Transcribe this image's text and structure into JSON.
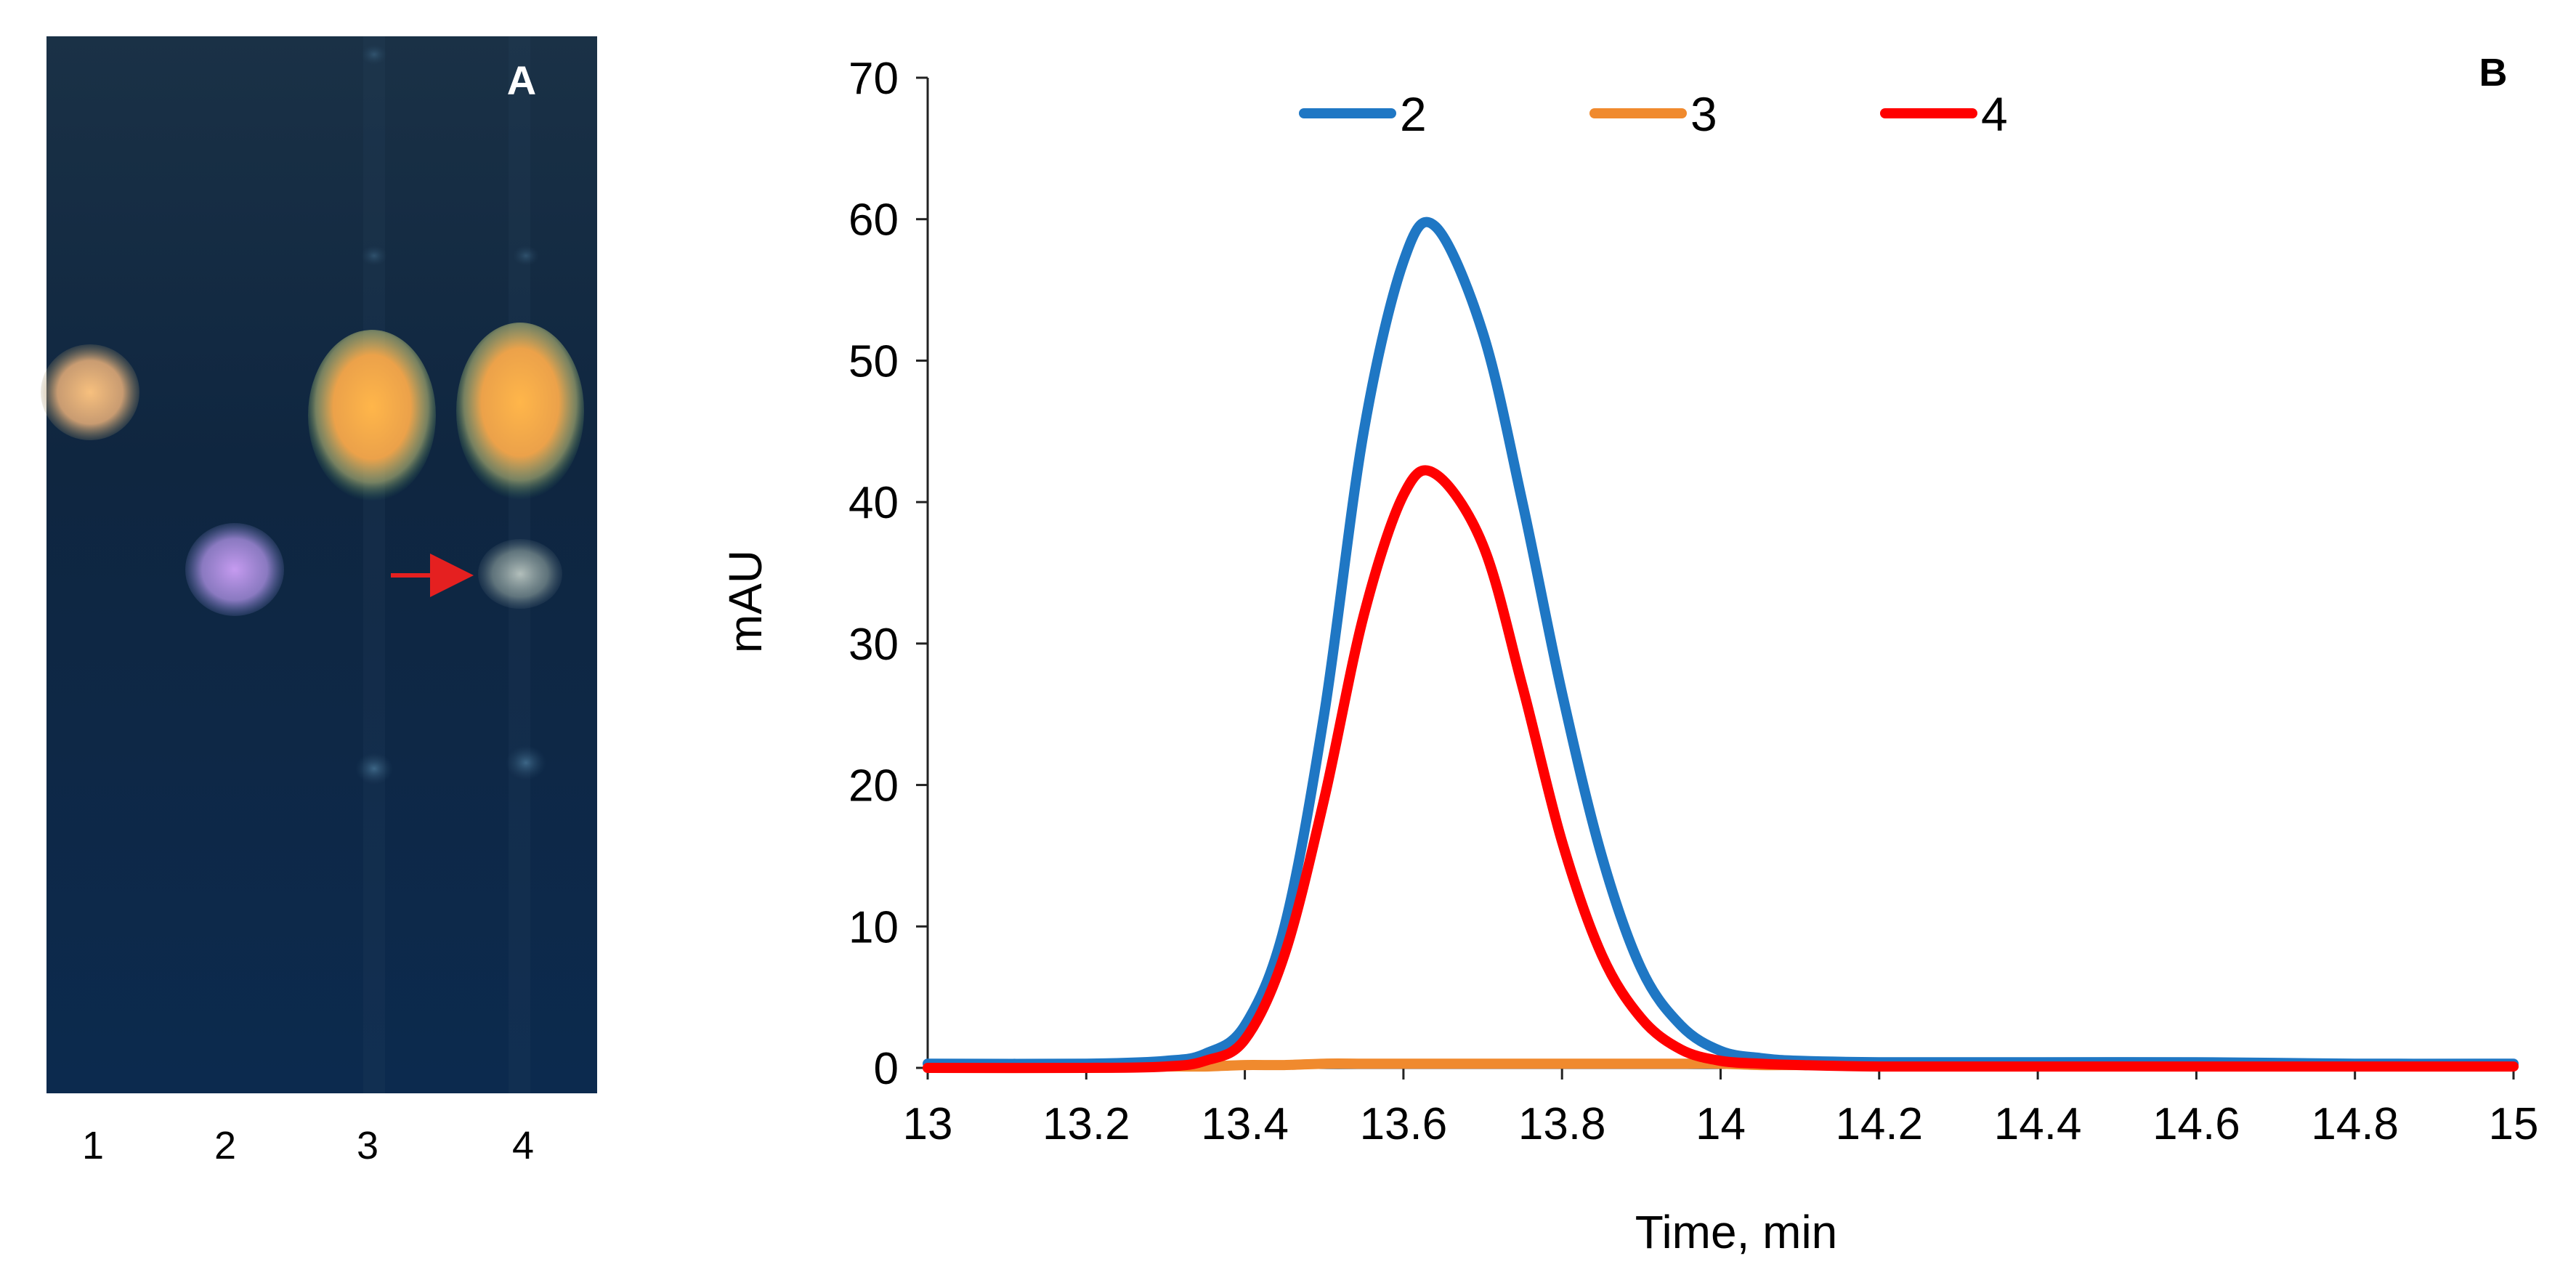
{
  "panel_a": {
    "label": "A",
    "lane_labels": [
      "1",
      "2",
      "3",
      "4"
    ],
    "spots": [
      {
        "lane": "1",
        "rf": 0.66,
        "color": "#f7c07e",
        "kind": "orange"
      },
      {
        "lane": "2",
        "rf": 0.49,
        "color": "#c69bf0",
        "kind": "violet"
      },
      {
        "lane": "3",
        "rf": 0.63,
        "color": "#ffb64a",
        "kind": "orange-large"
      },
      {
        "lane": "4",
        "rf": 0.63,
        "color": "#ffb64a",
        "kind": "orange-large"
      },
      {
        "lane": "4",
        "rf": 0.49,
        "color": "#cfd9d0",
        "kind": "faint-grey"
      }
    ],
    "arrow": {
      "target_lane": "4",
      "rf": 0.49,
      "color": "#e52020"
    },
    "background_color": "#0f2640"
  },
  "chart_data": {
    "type": "line",
    "panel_label": "B",
    "title": "",
    "xlabel": "Time, min",
    "ylabel": "mAU",
    "xlim": [
      13,
      15
    ],
    "ylim": [
      0,
      70
    ],
    "xticks": [
      "13",
      "13.2",
      "13.4",
      "13.6",
      "13.8",
      "14",
      "14.2",
      "14.4",
      "14.6",
      "14.8",
      "15"
    ],
    "yticks": [
      "0",
      "10",
      "20",
      "30",
      "40",
      "50",
      "60",
      "70"
    ],
    "legend_position": "top-center",
    "grid": false,
    "x": [
      13.0,
      13.2,
      13.3,
      13.35,
      13.4,
      13.45,
      13.5,
      13.55,
      13.6,
      13.64,
      13.7,
      13.75,
      13.8,
      13.85,
      13.9,
      13.95,
      14.0,
      14.05,
      14.1,
      14.2,
      14.4,
      14.6,
      14.8,
      15.0
    ],
    "series": [
      {
        "name": "2",
        "color": "#1f77c4",
        "values": [
          0.3,
          0.3,
          0.5,
          1.0,
          3.0,
          10.0,
          25.0,
          45.0,
          57.0,
          59.5,
          52.0,
          40.0,
          26.5,
          15.0,
          7.0,
          3.0,
          1.2,
          0.7,
          0.5,
          0.4,
          0.4,
          0.4,
          0.3,
          0.3
        ]
      },
      {
        "name": "3",
        "color": "#f08a2e",
        "values": [
          0.0,
          0.0,
          0.1,
          0.1,
          0.2,
          0.2,
          0.3,
          0.3,
          0.3,
          0.3,
          0.3,
          0.3,
          0.3,
          0.3,
          0.3,
          0.3,
          0.3,
          0.2,
          0.2,
          0.2,
          0.2,
          0.2,
          0.2,
          0.2
        ]
      },
      {
        "name": "4",
        "color": "#ff0000",
        "values": [
          0.0,
          0.0,
          0.1,
          0.5,
          2.0,
          8.0,
          19.0,
          32.0,
          40.5,
          42.0,
          37.0,
          27.0,
          16.0,
          8.0,
          3.5,
          1.3,
          0.5,
          0.3,
          0.2,
          0.1,
          0.1,
          0.1,
          0.1,
          0.1
        ]
      }
    ]
  }
}
